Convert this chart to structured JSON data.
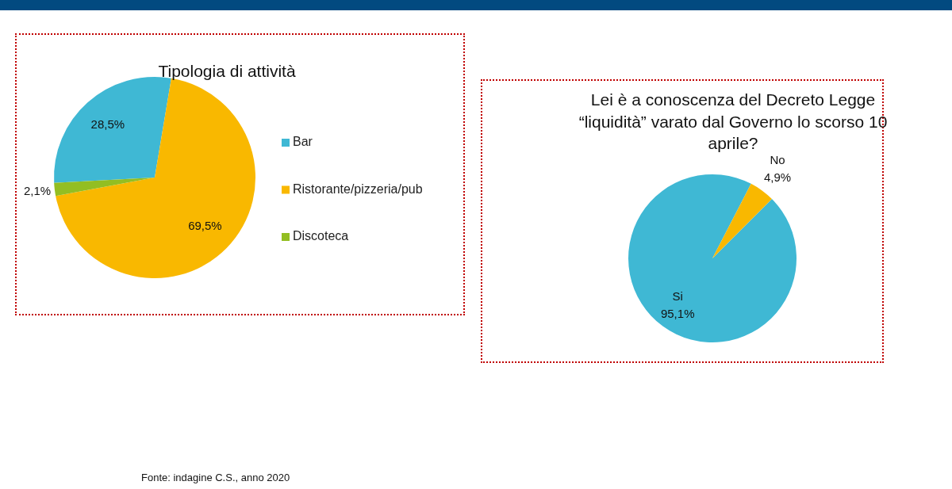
{
  "chart_data": [
    {
      "type": "pie",
      "title": "Tipologia di attività",
      "categories": [
        "Bar",
        "Ristorante/pizzeria/pub",
        "Discoteca"
      ],
      "values": [
        28.5,
        69.5,
        2.1
      ],
      "colors": [
        "#3fb8d4",
        "#f9b800",
        "#93be22"
      ],
      "value_labels": [
        "28,5%",
        "69,5%",
        "2,1%"
      ],
      "legend": "right",
      "annotations": [
        "Fonte: indagine C.S., anno 2020"
      ]
    },
    {
      "type": "pie",
      "title": "Lei è a conoscenza del Decreto Legge “liquidità” varato dal Governo lo scorso 10 aprile?",
      "categories": [
        "Si",
        "No"
      ],
      "values": [
        95.1,
        4.9
      ],
      "colors": [
        "#3fb8d4",
        "#f9b800"
      ],
      "value_labels": [
        "95,1%",
        "4,9%"
      ],
      "legend": false
    }
  ]
}
